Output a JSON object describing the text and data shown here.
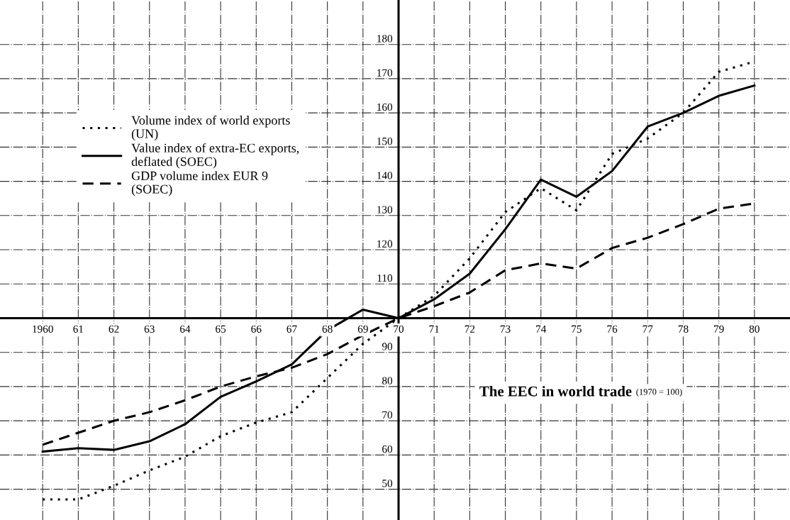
{
  "chart_data": {
    "type": "line",
    "title": "The EEC in world trade",
    "subtitle": "(1970 = 100)",
    "x": [
      1960,
      1961,
      1962,
      1963,
      1964,
      1965,
      1966,
      1967,
      1968,
      1969,
      1970,
      1971,
      1972,
      1973,
      1974,
      1975,
      1976,
      1977,
      1978,
      1979,
      1980
    ],
    "series": [
      {
        "name": "Volume index of world exports\n(UN)",
        "color": "#000000",
        "line_style": "dotted",
        "values": [
          47,
          47,
          51,
          55.5,
          59.5,
          65.5,
          69.5,
          72.5,
          82.5,
          92.5,
          100,
          106.5,
          117.5,
          131,
          138,
          131.5,
          148,
          152.5,
          160,
          172,
          175
        ]
      },
      {
        "name": "Value index of extra-EC exports,\ndeflated (SOEC)",
        "color": "#000000",
        "line_style": "solid",
        "values": [
          61,
          62,
          61.5,
          64,
          69,
          77,
          81.5,
          86.5,
          96.5,
          102.5,
          100,
          105.5,
          113,
          126,
          140.5,
          135.5,
          143,
          156,
          160,
          165,
          168
        ]
      },
      {
        "name": "GDP volume index EUR 9\n(SOEC)",
        "color": "#000000",
        "line_style": "dashed",
        "values": [
          63,
          66.5,
          70,
          72.5,
          76,
          80,
          83,
          85.5,
          89.5,
          95,
          100,
          103.5,
          107.5,
          114,
          116,
          114.5,
          120.5,
          123.5,
          127.5,
          132,
          133.5
        ]
      }
    ],
    "xlim": [
      1958.8,
      1981
    ],
    "xticks": [
      {
        "value": 1960,
        "label": "1960"
      },
      {
        "value": 1961,
        "label": "61"
      },
      {
        "value": 1962,
        "label": "62"
      },
      {
        "value": 1963,
        "label": "63"
      },
      {
        "value": 1964,
        "label": "64"
      },
      {
        "value": 1965,
        "label": "65"
      },
      {
        "value": 1966,
        "label": "66"
      },
      {
        "value": 1967,
        "label": "67"
      },
      {
        "value": 1968,
        "label": "68"
      },
      {
        "value": 1969,
        "label": "69"
      },
      {
        "value": 1970,
        "label": "70"
      },
      {
        "value": 1971,
        "label": "71"
      },
      {
        "value": 1972,
        "label": "72"
      },
      {
        "value": 1973,
        "label": "73"
      },
      {
        "value": 1974,
        "label": "74"
      },
      {
        "value": 1975,
        "label": "75"
      },
      {
        "value": 1976,
        "label": "76"
      },
      {
        "value": 1977,
        "label": "77"
      },
      {
        "value": 1978,
        "label": "78"
      },
      {
        "value": 1979,
        "label": "79"
      },
      {
        "value": 1980,
        "label": "80"
      }
    ],
    "ylim": [
      41,
      193
    ],
    "yticks": [
      50,
      60,
      70,
      80,
      90,
      110,
      120,
      130,
      140,
      150,
      160,
      170,
      180
    ],
    "grid": true,
    "legend": "top left",
    "marker": "none"
  }
}
